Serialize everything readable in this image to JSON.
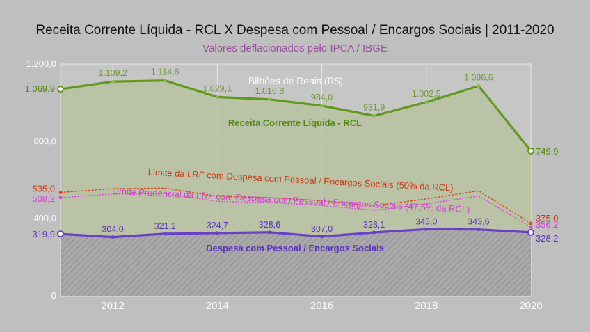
{
  "chart_data": {
    "type": "line",
    "title": "Receita Corrente Líquida - RCL X Despesa com Pessoal / Encargos Sociais | 2011-2020",
    "subtitle": "Valores deflacionados pelo IPCA / IBGE",
    "unit_label": "Bilhões de Reais (R$)",
    "x": [
      2011,
      2012,
      2013,
      2014,
      2015,
      2016,
      2017,
      2018,
      2019,
      2020
    ],
    "xticks": [
      2012,
      2014,
      2016,
      2018,
      2020
    ],
    "ylim": [
      0,
      1200
    ],
    "yticks": [
      {
        "value": 0,
        "label": "0"
      },
      {
        "value": 400,
        "label": "400,0"
      },
      {
        "value": 800,
        "label": "800,0"
      },
      {
        "value": 1200,
        "label": "1.200,0"
      }
    ],
    "grid": true,
    "series": [
      {
        "key": "rcl",
        "name": "Receita Corrente Líquida - RCL",
        "color": "#5f9a1a",
        "label_color": "#4f8a10",
        "values": [
          1069.9,
          1109.2,
          1114.6,
          1029.1,
          1016.8,
          984.0,
          931.9,
          1002.5,
          1086.6,
          749.9
        ],
        "labels": [
          "1.069,9",
          "1.109,2",
          "1.114,6",
          "1.029,1",
          "1.016,8",
          "984,0",
          "931,9",
          "1.002,5",
          "1.086,6",
          "749,9"
        ]
      },
      {
        "key": "lrf",
        "name": "Limite da LRF com Despesa com Pessoal / Encargos Sociais (50% da RCL)",
        "color": "#d94a1a",
        "label_color": "#cc3a10",
        "values": [
          535.0,
          554.6,
          557.3,
          514.6,
          508.4,
          492.0,
          466.0,
          501.3,
          543.3,
          375.0
        ],
        "labels": [
          "535,0",
          "",
          "",
          "",
          "",
          "",
          "",
          "",
          "",
          "375,0"
        ]
      },
      {
        "key": "prud",
        "name": "Limite Prudencial da LRF com Despesa com Pessoal / Encargos Sociais (47,5% da RCL)",
        "color": "#e040e0",
        "label_color": "#d838d8",
        "values": [
          508.2,
          526.9,
          529.4,
          488.8,
          483.0,
          467.4,
          442.7,
          476.2,
          516.1,
          356.2
        ],
        "labels": [
          "508,2",
          "",
          "",
          "",
          "",
          "",
          "",
          "",
          "",
          "356,2"
        ]
      },
      {
        "key": "desp",
        "name": "Despesa com Pessoal / Encargos Sociais",
        "color": "#6a3fc8",
        "label_color": "#5a30c0",
        "values": [
          319.9,
          304.0,
          321.2,
          324.7,
          328.6,
          307.0,
          328.1,
          345.0,
          343.6,
          328.2
        ],
        "labels": [
          "319,9",
          "304,0",
          "321,2",
          "324,7",
          "328,6",
          "307,0",
          "328,1",
          "345,0",
          "343,6",
          "328,2"
        ]
      }
    ]
  }
}
